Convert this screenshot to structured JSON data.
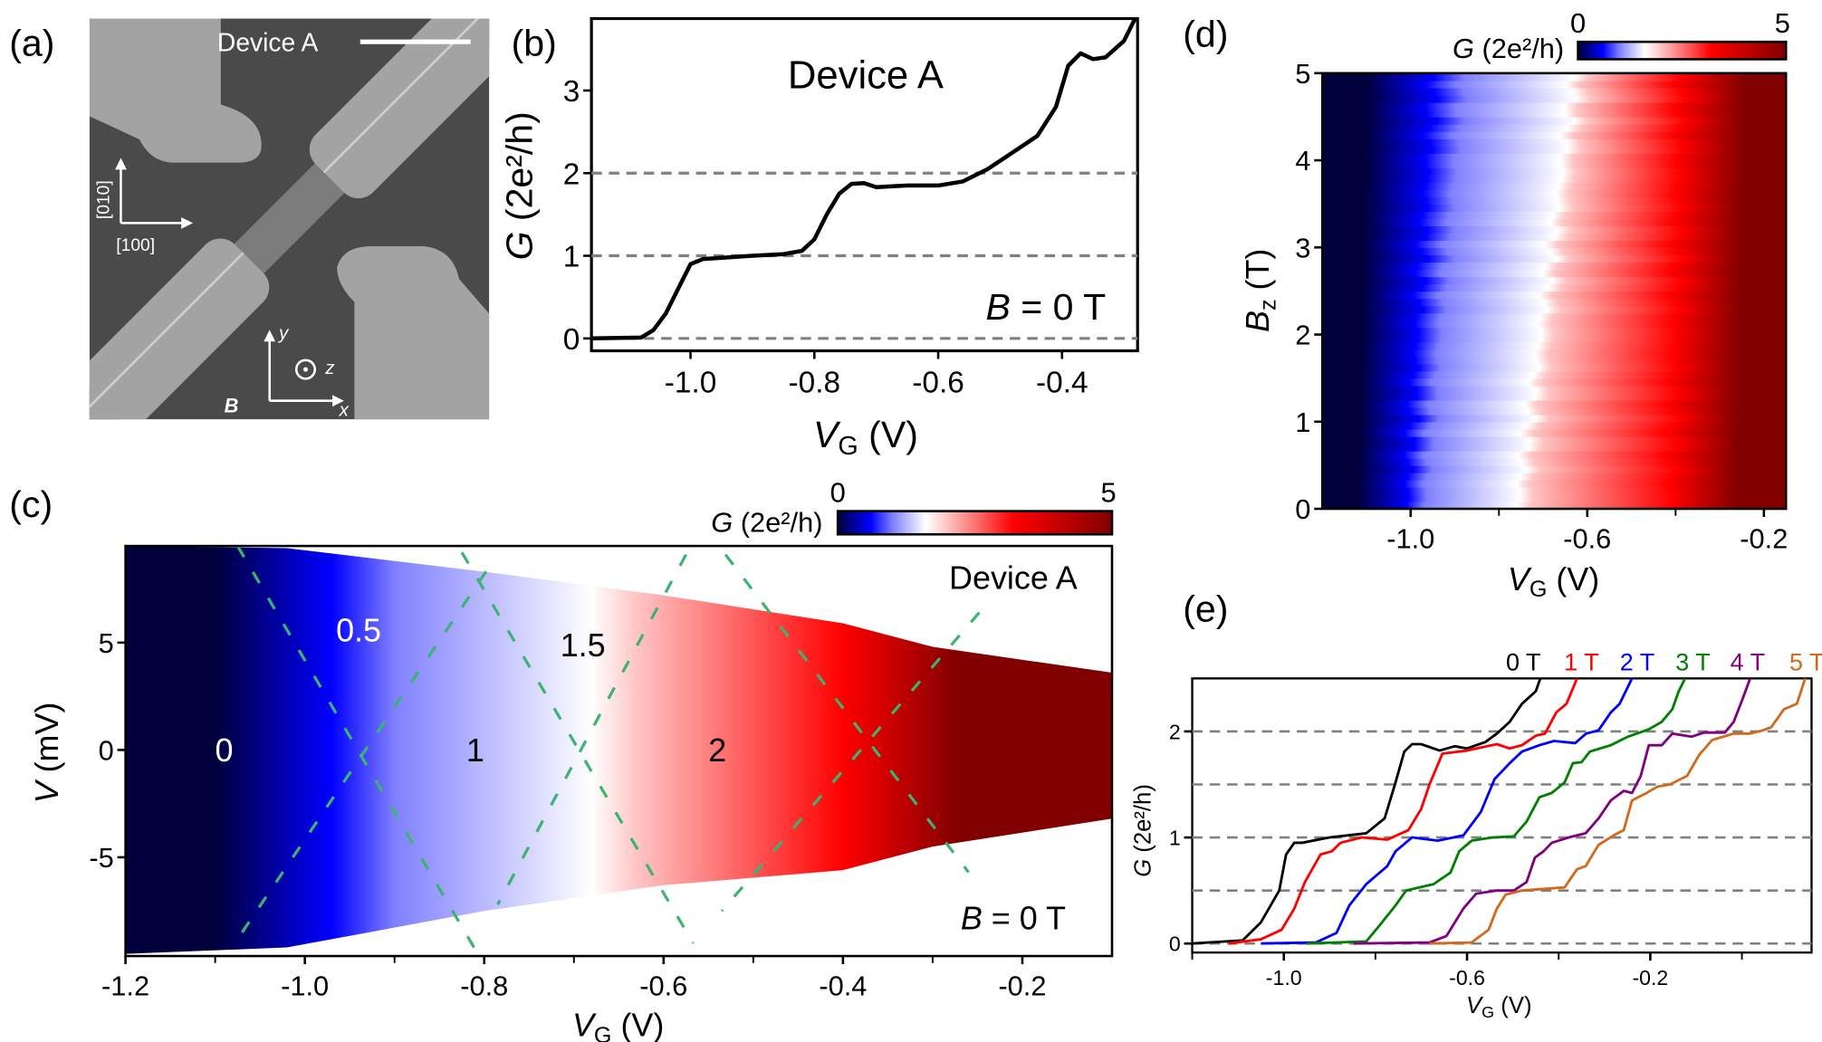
{
  "panel_labels": {
    "a": "(a)",
    "b": "(b)",
    "c": "(c)",
    "d": "(d)",
    "e": "(e)"
  },
  "panel_a": {
    "device_label": "Device A",
    "crystal_axes": {
      "vertical": "[010]",
      "horizontal": "[100]"
    },
    "coord_axes": {
      "y": "y",
      "z": "z",
      "x": "x"
    },
    "field_label": "B",
    "colors": {
      "substrate": "#4a4a4a",
      "metal": "#a3a3a3",
      "wire": "#7c7c7c"
    }
  },
  "colormap": {
    "stops": [
      [
        0,
        "#00003c"
      ],
      [
        0.6,
        "#0000ff"
      ],
      [
        1.0,
        "#8080ff"
      ],
      [
        1.6,
        "#ffffff"
      ],
      [
        2.0,
        "#ffc4c4"
      ],
      [
        3.2,
        "#ff0000"
      ],
      [
        5,
        "#800000"
      ]
    ],
    "range": [
      0,
      5
    ]
  },
  "chart_data": [
    {
      "panel": "b",
      "type": "line",
      "title": "Device A",
      "annotation": {
        "var": "B",
        "rest": " = 0 T"
      },
      "xlabel": {
        "var": "V",
        "sub": "G",
        "rest": " (V)"
      },
      "ylabel": {
        "var": "G",
        "rest": " (2e²/h)"
      },
      "xlim": [
        -1.16,
        -0.278
      ],
      "ylim": [
        -0.15,
        3.87
      ],
      "xticks": [
        -1.0,
        -0.8,
        -0.6,
        -0.4
      ],
      "xtick_labels": [
        "-1.0",
        "-0.8",
        "-0.6",
        "-0.4"
      ],
      "yticks": [
        0,
        1,
        2,
        3
      ],
      "ytick_labels": [
        "0",
        "1",
        "2",
        "3"
      ],
      "reference_lines": [
        0,
        1,
        2
      ],
      "series": [
        {
          "color": "#000000",
          "x": [
            -1.16,
            -1.08,
            -1.06,
            -1.04,
            -1.02,
            -1.0,
            -0.98,
            -0.96,
            -0.9,
            -0.85,
            -0.82,
            -0.8,
            -0.78,
            -0.76,
            -0.74,
            -0.72,
            -0.7,
            -0.65,
            -0.6,
            -0.56,
            -0.52,
            -0.48,
            -0.44,
            -0.41,
            -0.39,
            -0.37,
            -0.35,
            -0.33,
            -0.3,
            -0.28
          ],
          "y": [
            0.0,
            0.01,
            0.1,
            0.3,
            0.6,
            0.9,
            0.96,
            0.97,
            1.0,
            1.02,
            1.06,
            1.2,
            1.5,
            1.75,
            1.87,
            1.88,
            1.83,
            1.85,
            1.85,
            1.9,
            2.05,
            2.25,
            2.45,
            2.8,
            3.3,
            3.45,
            3.38,
            3.4,
            3.6,
            3.9
          ]
        }
      ]
    },
    {
      "panel": "c",
      "type": "heatmap",
      "title": "Device A",
      "annotation": {
        "var": "B",
        "rest": " = 0 T"
      },
      "xlabel": {
        "var": "V",
        "sub": "G",
        "rest": " (V)"
      },
      "ylabel": {
        "var": "V",
        "rest": " (mV)"
      },
      "xlim": [
        -1.2,
        -0.1
      ],
      "ylim": [
        -9.6,
        9.5
      ],
      "xticks": [
        -1.2,
        -1.0,
        -0.8,
        -0.6,
        -0.4,
        -0.2
      ],
      "xtick_labels": [
        "-1.2",
        "-1.0",
        "-0.8",
        "-0.6",
        "-0.4",
        "-0.2"
      ],
      "minor_xticks": [
        -1.1,
        -0.9,
        -0.7,
        -0.5,
        -0.3
      ],
      "yticks": [
        -5,
        0,
        5
      ],
      "ytick_labels": [
        "-5",
        "0",
        "5"
      ],
      "colorbar": {
        "label": {
          "var": "G",
          "rest": " (2e²/h)"
        },
        "min_label": "0",
        "max_label": "5"
      },
      "conductance_profile": {
        "G": [
          0,
          0.6,
          1.0,
          1.6,
          2.0,
          3.2,
          5
        ],
        "VG": [
          -1.1,
          -0.97,
          -0.9,
          -0.68,
          -0.63,
          -0.4,
          -0.27
        ]
      },
      "data_boundary": {
        "VG": [
          -1.2,
          -1.02,
          -0.8,
          -0.6,
          -0.4,
          -0.3,
          -0.1
        ],
        "V_top": [
          9.5,
          9.4,
          8.3,
          7.2,
          5.9,
          4.8,
          3.6
        ],
        "V_bottom": [
          -9.5,
          -9.2,
          -7.5,
          -6.3,
          -5.6,
          -4.5,
          -3.2
        ]
      },
      "diamond_lines": {
        "color": "#3cb371",
        "segments": [
          [
            [
              -1.075,
              9.5
            ],
            [
              -0.81,
              -9.3
            ]
          ],
          [
            [
              -1.07,
              -8.5
            ],
            [
              -0.79,
              8.8
            ]
          ],
          [
            [
              -0.825,
              9.2
            ],
            [
              -0.567,
              -9.0
            ]
          ],
          [
            [
              -0.575,
              9.1
            ],
            [
              -0.785,
              -7.2
            ]
          ],
          [
            [
              -0.531,
              9.1
            ],
            [
              -0.26,
              -5.7
            ]
          ],
          [
            [
              -0.248,
              6.4
            ],
            [
              -0.535,
              -7.5
            ]
          ]
        ]
      },
      "region_labels": [
        {
          "text": "0",
          "VG": -1.09,
          "V": 0,
          "color": "#ffffff"
        },
        {
          "text": "0.5",
          "VG": -0.94,
          "V": 5.6,
          "color": "#ffffff"
        },
        {
          "text": "1",
          "VG": -0.81,
          "V": 0,
          "color": "#000000"
        },
        {
          "text": "1.5",
          "VG": -0.69,
          "V": 4.9,
          "color": "#000000"
        },
        {
          "text": "2",
          "VG": -0.54,
          "V": 0,
          "color": "#000000"
        }
      ]
    },
    {
      "panel": "d",
      "type": "heatmap",
      "xlabel": {
        "var": "V",
        "sub": "G",
        "rest": " (V)"
      },
      "ylabel": {
        "var": "B",
        "sub": "z",
        "rest": " (T)"
      },
      "xlim": [
        -1.2,
        -0.15
      ],
      "ylim": [
        0,
        5
      ],
      "xticks": [
        -1.0,
        -0.6,
        -0.2
      ],
      "xtick_labels": [
        "-1.0",
        "-0.6",
        "-0.2"
      ],
      "minor_xticks": [
        -0.8,
        -0.4
      ],
      "yticks": [
        0,
        1,
        2,
        3,
        4,
        5
      ],
      "ytick_labels": [
        "0",
        "1",
        "2",
        "3",
        "4",
        "5"
      ],
      "colorbar": {
        "label": {
          "var": "G",
          "rest": " (2e²/h)"
        },
        "min_label": "0",
        "max_label": "5"
      },
      "conductance_profile": {
        "G": [
          0,
          0.6,
          1.0,
          1.6,
          2.0,
          3.2,
          5
        ],
        "VG_at_B0": [
          -1.12,
          -1.01,
          -0.97,
          -0.76,
          -0.73,
          -0.41,
          -0.26
        ],
        "VG_at_B5": [
          -1.1,
          -0.95,
          -0.88,
          -0.63,
          -0.6,
          -0.39,
          -0.24
        ]
      }
    },
    {
      "panel": "e",
      "type": "line",
      "xlabel": {
        "var": "V",
        "sub": "G",
        "rest": " (V)"
      },
      "ylabel": {
        "var": "G",
        "rest": " (2e²/h)"
      },
      "xlim": [
        -1.2,
        0.152
      ],
      "ylim": [
        -0.085,
        2.5
      ],
      "xticks": [
        -1.0,
        -0.6,
        -0.2
      ],
      "xtick_labels": [
        "-1.0",
        "-0.6",
        "-0.2"
      ],
      "minor_xticks": [
        -1.2,
        -0.8,
        -0.4,
        0.0
      ],
      "yticks": [
        0,
        1,
        2
      ],
      "ytick_labels": [
        "0",
        "1",
        "2"
      ],
      "reference_lines": [
        0,
        0.5,
        1,
        1.5,
        2
      ],
      "series": [
        {
          "name": "0 T",
          "color": "#000000",
          "x": [
            -1.2,
            -1.09,
            -1.05,
            -1.01,
            -0.995,
            -0.977,
            -0.96,
            -0.9,
            -0.82,
            -0.78,
            -0.756,
            -0.737,
            -0.72,
            -0.7,
            -0.66,
            -0.627,
            -0.6,
            -0.56,
            -0.535,
            -0.507,
            -0.48,
            -0.45,
            -0.44
          ],
          "y": [
            0,
            0.03,
            0.2,
            0.5,
            0.84,
            0.95,
            0.95,
            1.0,
            1.04,
            1.18,
            1.52,
            1.81,
            1.88,
            1.88,
            1.82,
            1.86,
            1.84,
            1.9,
            1.98,
            2.09,
            2.26,
            2.38,
            2.5
          ]
        },
        {
          "name": "1 T",
          "color": "#ff0000",
          "x": [
            -1.12,
            -1.05,
            -1.005,
            -0.977,
            -0.954,
            -0.92,
            -0.895,
            -0.876,
            -0.83,
            -0.774,
            -0.728,
            -0.7,
            -0.682,
            -0.654,
            -0.6,
            -0.535,
            -0.507,
            -0.48,
            -0.45,
            -0.43,
            -0.405,
            -0.383,
            -0.36
          ],
          "y": [
            0,
            0.04,
            0.13,
            0.33,
            0.58,
            0.84,
            0.87,
            0.95,
            1.0,
            0.98,
            1.07,
            1.27,
            1.5,
            1.79,
            1.82,
            1.88,
            1.84,
            1.87,
            1.96,
            1.98,
            2.18,
            2.26,
            2.5
          ]
        },
        {
          "name": "2 T",
          "color": "#0000ff",
          "x": [
            -1.05,
            -0.93,
            -0.885,
            -0.857,
            -0.82,
            -0.774,
            -0.756,
            -0.72,
            -0.664,
            -0.608,
            -0.57,
            -0.54,
            -0.507,
            -0.48,
            -0.442,
            -0.41,
            -0.364,
            -0.34,
            -0.313,
            -0.286,
            -0.267,
            -0.24
          ],
          "y": [
            0,
            0.01,
            0.1,
            0.36,
            0.56,
            0.73,
            0.87,
            1.0,
            0.97,
            1.02,
            1.24,
            1.55,
            1.7,
            1.81,
            1.87,
            1.91,
            1.89,
            1.98,
            2.01,
            2.18,
            2.26,
            2.5
          ]
        },
        {
          "name": "3 T",
          "color": "#008000",
          "x": [
            -0.95,
            -0.82,
            -0.793,
            -0.756,
            -0.733,
            -0.673,
            -0.636,
            -0.617,
            -0.59,
            -0.544,
            -0.498,
            -0.47,
            -0.442,
            -0.415,
            -0.387,
            -0.369,
            -0.35,
            -0.332,
            -0.286,
            -0.249,
            -0.203,
            -0.175,
            -0.152,
            -0.138,
            -0.124
          ],
          "y": [
            0,
            0.02,
            0.16,
            0.36,
            0.5,
            0.56,
            0.67,
            0.87,
            0.97,
            1.0,
            1.01,
            1.15,
            1.38,
            1.42,
            1.52,
            1.7,
            1.71,
            1.81,
            1.87,
            1.95,
            2.02,
            2.09,
            2.21,
            2.38,
            2.5
          ]
        },
        {
          "name": "4 T",
          "color": "#800080",
          "x": [
            -0.848,
            -0.682,
            -0.645,
            -0.608,
            -0.58,
            -0.535,
            -0.498,
            -0.47,
            -0.452,
            -0.433,
            -0.415,
            -0.378,
            -0.341,
            -0.313,
            -0.286,
            -0.258,
            -0.24,
            -0.221,
            -0.203,
            -0.175,
            -0.152,
            -0.11,
            -0.083,
            -0.037,
            -0.018,
            0.0,
            0.018
          ],
          "y": [
            0,
            0.01,
            0.07,
            0.33,
            0.47,
            0.5,
            0.5,
            0.58,
            0.81,
            0.87,
            0.95,
            1.0,
            1.04,
            1.18,
            1.35,
            1.44,
            1.42,
            1.58,
            1.87,
            1.87,
            1.98,
            1.95,
            1.99,
            1.99,
            2.09,
            2.29,
            2.5
          ]
        },
        {
          "name": "5 T",
          "color": "#d2691e",
          "x": [
            -0.682,
            -0.59,
            -0.553,
            -0.535,
            -0.516,
            -0.48,
            -0.387,
            -0.36,
            -0.341,
            -0.313,
            -0.276,
            -0.258,
            -0.24,
            -0.212,
            -0.184,
            -0.157,
            -0.12,
            -0.093,
            -0.065,
            -0.018,
            0.018,
            0.046,
            0.064,
            0.092,
            0.12,
            0.138
          ],
          "y": [
            0,
            0.01,
            0.13,
            0.33,
            0.46,
            0.5,
            0.53,
            0.7,
            0.73,
            0.93,
            1.03,
            1.07,
            1.35,
            1.41,
            1.48,
            1.5,
            1.58,
            1.78,
            1.92,
            1.98,
            1.98,
            2.01,
            2.04,
            2.21,
            2.26,
            2.5
          ]
        }
      ]
    }
  ]
}
